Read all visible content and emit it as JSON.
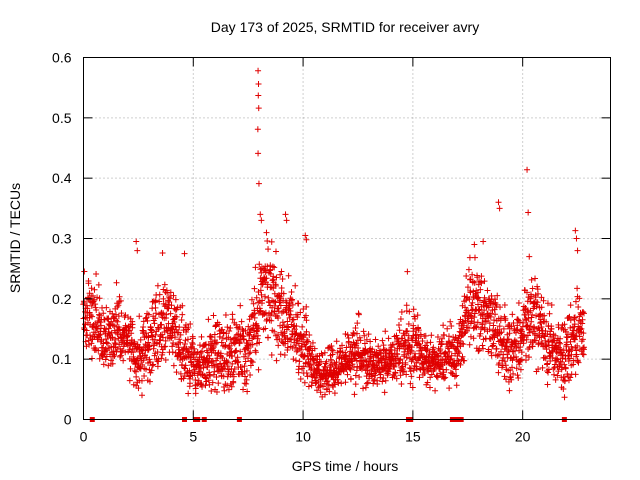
{
  "chart_data": {
    "type": "scatter",
    "title": "Day 173 of 2025, SRMTID for receiver avry",
    "xlabel": "GPS time / hours",
    "ylabel": "SRMTID / TECUs",
    "xlim": [
      0,
      24
    ],
    "ylim": [
      0,
      0.6
    ],
    "x_ticks": [
      0,
      5,
      10,
      15,
      20
    ],
    "x_tick_labels": [
      "0",
      "5",
      "10",
      "15",
      "20"
    ],
    "y_ticks": [
      0,
      0.1,
      0.2,
      0.3,
      0.4,
      0.5,
      0.6
    ],
    "y_tick_labels": [
      "0",
      "0.1",
      "0.2",
      "0.3",
      "0.4",
      "0.5",
      "0.6"
    ],
    "grid": true,
    "marker": "+",
    "color": "#e00000",
    "envelope": {
      "x": [
        0.0,
        0.5,
        1.0,
        1.5,
        2.0,
        2.5,
        3.0,
        3.5,
        4.0,
        4.5,
        5.0,
        5.5,
        6.0,
        6.5,
        7.0,
        7.5,
        8.0,
        8.5,
        9.0,
        9.5,
        10.0,
        10.5,
        11.0,
        11.5,
        12.0,
        12.5,
        13.0,
        13.5,
        14.0,
        14.5,
        15.0,
        15.5,
        16.0,
        16.5,
        17.0,
        17.5,
        18.0,
        18.5,
        19.0,
        19.5,
        20.0,
        20.5,
        21.0,
        21.5,
        22.0,
        22.5,
        22.8
      ],
      "level": [
        0.17,
        0.16,
        0.13,
        0.15,
        0.13,
        0.1,
        0.13,
        0.15,
        0.16,
        0.12,
        0.09,
        0.09,
        0.11,
        0.1,
        0.12,
        0.11,
        0.19,
        0.22,
        0.18,
        0.16,
        0.13,
        0.08,
        0.08,
        0.09,
        0.1,
        0.11,
        0.1,
        0.09,
        0.1,
        0.11,
        0.13,
        0.1,
        0.09,
        0.11,
        0.1,
        0.19,
        0.18,
        0.17,
        0.13,
        0.11,
        0.15,
        0.17,
        0.14,
        0.11,
        0.1,
        0.16,
        0.14
      ],
      "spread": [
        0.05,
        0.05,
        0.04,
        0.05,
        0.04,
        0.04,
        0.05,
        0.05,
        0.05,
        0.05,
        0.04,
        0.04,
        0.04,
        0.04,
        0.04,
        0.04,
        0.07,
        0.06,
        0.06,
        0.05,
        0.05,
        0.03,
        0.03,
        0.03,
        0.03,
        0.04,
        0.03,
        0.03,
        0.03,
        0.04,
        0.05,
        0.03,
        0.03,
        0.04,
        0.03,
        0.06,
        0.05,
        0.05,
        0.05,
        0.04,
        0.05,
        0.05,
        0.05,
        0.04,
        0.04,
        0.06,
        0.05
      ]
    },
    "spikes": [
      {
        "x": 7.95,
        "y": 0.578
      },
      {
        "x": 7.97,
        "y": 0.556
      },
      {
        "x": 7.96,
        "y": 0.537
      },
      {
        "x": 7.98,
        "y": 0.516
      },
      {
        "x": 7.94,
        "y": 0.481
      },
      {
        "x": 7.95,
        "y": 0.441
      },
      {
        "x": 7.99,
        "y": 0.391
      },
      {
        "x": 8.05,
        "y": 0.34
      },
      {
        "x": 8.1,
        "y": 0.33
      },
      {
        "x": 2.4,
        "y": 0.295
      },
      {
        "x": 2.45,
        "y": 0.28
      },
      {
        "x": 3.6,
        "y": 0.276
      },
      {
        "x": 4.6,
        "y": 0.275
      },
      {
        "x": 9.2,
        "y": 0.34
      },
      {
        "x": 9.25,
        "y": 0.33
      },
      {
        "x": 10.1,
        "y": 0.305
      },
      {
        "x": 10.15,
        "y": 0.298
      },
      {
        "x": 14.75,
        "y": 0.245
      },
      {
        "x": 17.8,
        "y": 0.29
      },
      {
        "x": 18.2,
        "y": 0.295
      },
      {
        "x": 18.9,
        "y": 0.36
      },
      {
        "x": 18.95,
        "y": 0.35
      },
      {
        "x": 20.2,
        "y": 0.414
      },
      {
        "x": 20.25,
        "y": 0.343
      },
      {
        "x": 20.3,
        "y": 0.27
      },
      {
        "x": 22.4,
        "y": 0.313
      },
      {
        "x": 22.45,
        "y": 0.3
      },
      {
        "x": 22.5,
        "y": 0.28
      }
    ],
    "data_gaps_hours": [
      0.4,
      4.6,
      5.1,
      5.2,
      5.5,
      7.1,
      14.8,
      14.9,
      16.8,
      17.0,
      17.2,
      21.9
    ]
  }
}
